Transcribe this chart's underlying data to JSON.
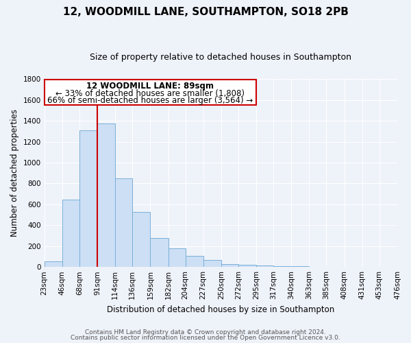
{
  "title": "12, WOODMILL LANE, SOUTHAMPTON, SO18 2PB",
  "subtitle": "Size of property relative to detached houses in Southampton",
  "xlabel": "Distribution of detached houses by size in Southampton",
  "ylabel": "Number of detached properties",
  "bar_values": [
    55,
    645,
    1310,
    1375,
    850,
    530,
    280,
    180,
    105,
    65,
    30,
    20,
    15,
    10,
    5
  ],
  "bin_edges": [
    23,
    46,
    68,
    91,
    114,
    136,
    159,
    182,
    204,
    227,
    250,
    272,
    295,
    317,
    340,
    363,
    385,
    408,
    431,
    453,
    476
  ],
  "tick_labels": [
    "23sqm",
    "46sqm",
    "68sqm",
    "91sqm",
    "114sqm",
    "136sqm",
    "159sqm",
    "182sqm",
    "204sqm",
    "227sqm",
    "250sqm",
    "272sqm",
    "295sqm",
    "317sqm",
    "340sqm",
    "363sqm",
    "385sqm",
    "408sqm",
    "431sqm",
    "453sqm",
    "476sqm"
  ],
  "bar_color": "#ccdff5",
  "bar_edge_color": "#7ab0d8",
  "property_line_x": 91,
  "ylim": [
    0,
    1800
  ],
  "yticks": [
    0,
    200,
    400,
    600,
    800,
    1000,
    1200,
    1400,
    1600,
    1800
  ],
  "annotation_title": "12 WOODMILL LANE: 89sqm",
  "annotation_line1": "← 33% of detached houses are smaller (1,808)",
  "annotation_line2": "66% of semi-detached houses are larger (3,564) →",
  "red_line_color": "#cc0000",
  "annotation_border_color": "#cc0000",
  "footnote1": "Contains HM Land Registry data © Crown copyright and database right 2024.",
  "footnote2": "Contains public sector information licensed under the Open Government Licence v3.0.",
  "bg_color": "#eef2f9",
  "grid_color": "#ffffff",
  "title_fontsize": 11,
  "subtitle_fontsize": 9,
  "axis_label_fontsize": 8.5,
  "tick_fontsize": 7.5,
  "annotation_fontsize": 8.5,
  "footnote_fontsize": 6.5
}
